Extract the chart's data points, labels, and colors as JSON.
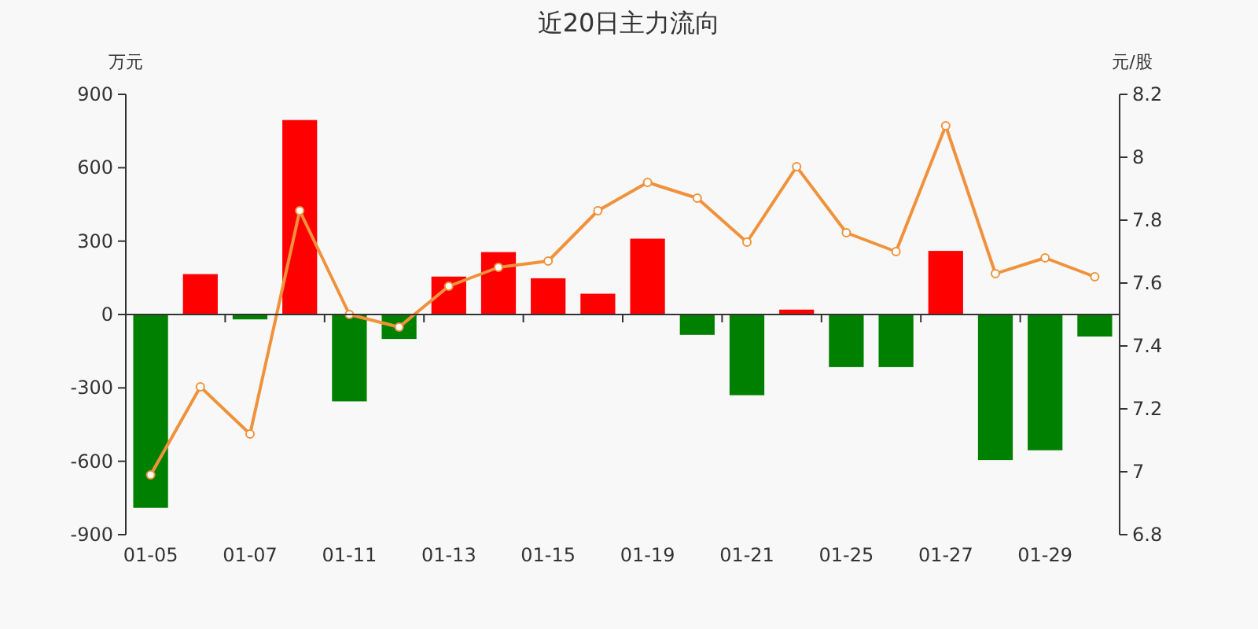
{
  "chart_data": {
    "type": "bar",
    "title": "近20日主力流向",
    "ylabel": "万元",
    "y2label": "元/股",
    "categories": [
      "01-05",
      null,
      "01-07",
      null,
      "01-11",
      null,
      "01-13",
      null,
      "01-15",
      null,
      "01-19",
      null,
      "01-21",
      null,
      "01-25",
      null,
      "01-27",
      null,
      "01-29",
      null
    ],
    "ylim": [
      -900,
      900
    ],
    "yticks": [
      -900,
      -600,
      -300,
      0,
      300,
      600,
      900
    ],
    "y2lim": [
      6.8,
      8.2
    ],
    "y2ticks": [
      6.8,
      7,
      7.2,
      7.4,
      7.6,
      7.8,
      8,
      8.2
    ],
    "series": [
      {
        "colors": [
          "#008000",
          "#ff0000",
          "#008000",
          "#ff0000",
          "#008000",
          "#008000",
          "#ff0000",
          "#ff0000",
          "#ff0000",
          "#ff0000",
          "#ff0000",
          "#008000",
          "#008000",
          "#ff0000",
          "#008000",
          "#008000",
          "#ff0000",
          "#008000",
          "#008000",
          "#008000"
        ],
        "values": [
          -790,
          165,
          -20,
          795,
          -355,
          -100,
          155,
          255,
          148,
          85,
          310,
          -83,
          -330,
          20,
          -215,
          -215,
          260,
          -595,
          -555,
          -90
        ]
      },
      {
        "type": "line",
        "axis": "y2",
        "color": "#f0923c",
        "marker": "circle",
        "values": [
          6.99,
          7.27,
          7.12,
          7.83,
          7.5,
          7.46,
          7.59,
          7.65,
          7.67,
          7.83,
          7.92,
          7.87,
          7.73,
          7.97,
          7.76,
          7.7,
          8.1,
          7.63,
          7.68,
          7.62
        ]
      }
    ]
  }
}
